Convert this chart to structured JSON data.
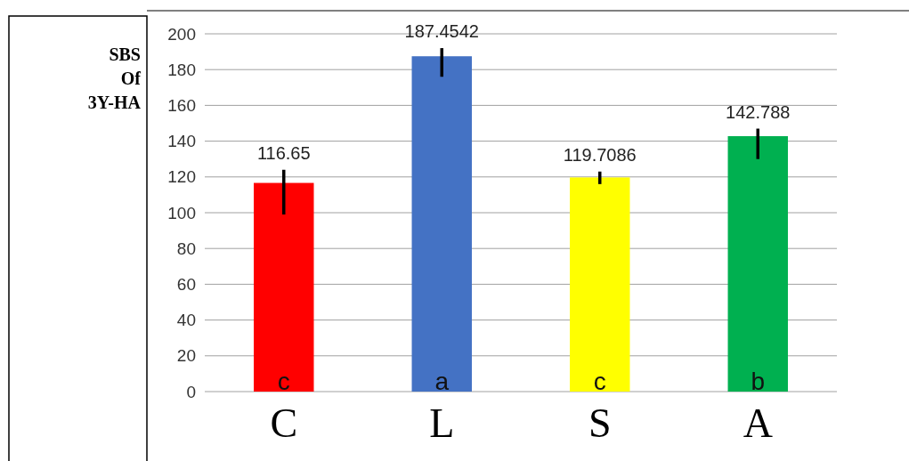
{
  "chart_data": {
    "type": "bar",
    "ylabel": "SBS Of 3Y-HA",
    "categories": [
      "C",
      "L",
      "S",
      "A"
    ],
    "values": [
      116.65,
      187.4542,
      119.7086,
      142.788
    ],
    "colors": [
      "#ff0000",
      "#4472c4",
      "#ffff00",
      "#00b050"
    ],
    "errors": [
      [
        99,
        124
      ],
      [
        176,
        192
      ],
      [
        116,
        123
      ],
      [
        130,
        147
      ]
    ],
    "data_labels": true,
    "ylim": [
      0,
      200
    ],
    "yticks": [
      0,
      20,
      40,
      60,
      80,
      100,
      120,
      140,
      160,
      180,
      200
    ],
    "grid": "y",
    "annotations": [
      {
        "text": "c",
        "x": "C",
        "y": 0
      },
      {
        "text": "a",
        "x": "L",
        "y": 0
      },
      {
        "text": "c",
        "x": "S",
        "y": 0
      },
      {
        "text": "b",
        "x": "A",
        "y": 0
      }
    ]
  }
}
